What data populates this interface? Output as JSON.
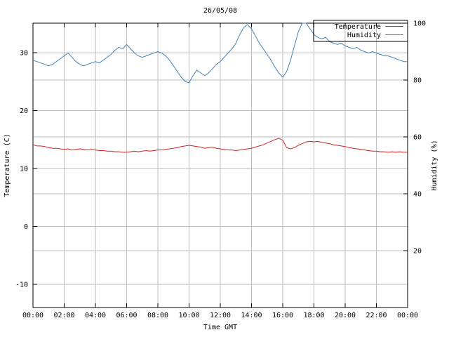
{
  "chart_data": {
    "type": "line",
    "title": "26/05/08",
    "xlabel": "Time GMT",
    "ylabel_left": "Temperature (C)",
    "ylabel_right": "Humidity (%)",
    "x_range": [
      0,
      24
    ],
    "ylim_left": [
      -14,
      35.1
    ],
    "ylim_right": [
      0,
      100
    ],
    "x_tick_hours": [
      0,
      2,
      4,
      6,
      8,
      10,
      12,
      14,
      16,
      18,
      20,
      22,
      24
    ],
    "x_tick_labels": [
      "00:00",
      "02:00",
      "04:00",
      "06:00",
      "08:00",
      "10:00",
      "12:00",
      "14:00",
      "16:00",
      "18:00",
      "20:00",
      "22:00",
      "00:00"
    ],
    "y_ticks_left": [
      -10,
      0,
      10,
      20,
      30
    ],
    "y_ticks_right": [
      20,
      40,
      60,
      80,
      100
    ],
    "grid": true,
    "colors": {
      "temperature": "#cc2222",
      "humidity": "#4682b4",
      "grid": "#bebebe",
      "border": "#000000"
    },
    "legend": {
      "position": "top-right",
      "entries": [
        {
          "label": "Temperature",
          "color": "#cc2222"
        },
        {
          "label": "Humidity",
          "color": "#4682b4"
        }
      ]
    },
    "sample_interval_minutes": 15,
    "series": [
      {
        "name": "Temperature",
        "axis": "left",
        "color": "#cc2222",
        "values": [
          14.1,
          13.9,
          13.9,
          13.8,
          13.6,
          13.5,
          13.5,
          13.4,
          13.3,
          13.4,
          13.2,
          13.3,
          13.4,
          13.3,
          13.2,
          13.3,
          13.2,
          13.1,
          13.1,
          13.0,
          13.0,
          12.9,
          12.9,
          12.8,
          12.8,
          12.9,
          13.0,
          12.9,
          13.0,
          13.1,
          13.0,
          13.1,
          13.2,
          13.2,
          13.3,
          13.4,
          13.5,
          13.6,
          13.8,
          13.9,
          14.0,
          13.9,
          13.8,
          13.7,
          13.5,
          13.6,
          13.7,
          13.5,
          13.4,
          13.3,
          13.2,
          13.2,
          13.1,
          13.2,
          13.3,
          13.4,
          13.5,
          13.7,
          13.9,
          14.1,
          14.4,
          14.7,
          15.0,
          15.2,
          14.9,
          13.6,
          13.4,
          13.6,
          14.0,
          14.3,
          14.6,
          14.7,
          14.6,
          14.7,
          14.5,
          14.4,
          14.3,
          14.1,
          14.0,
          13.9,
          13.8,
          13.6,
          13.5,
          13.4,
          13.3,
          13.2,
          13.1,
          13.0,
          13.0,
          12.9,
          12.9,
          12.8,
          12.9,
          12.8,
          12.9,
          12.8,
          12.8
        ]
      },
      {
        "name": "Humidity",
        "axis": "right",
        "color": "#4682b4",
        "values": [
          87,
          86.5,
          86,
          85.5,
          85,
          85.5,
          86.5,
          87.5,
          88.5,
          89.5,
          88,
          86.5,
          85.5,
          85,
          85.5,
          86,
          86.5,
          86,
          87,
          88,
          89,
          90.5,
          91.5,
          91,
          92.5,
          91,
          89.5,
          88.5,
          88,
          88.5,
          89,
          89.5,
          90,
          89.5,
          88.5,
          87,
          85,
          83,
          81,
          79.5,
          79,
          81.5,
          83.5,
          82.5,
          81.5,
          82.5,
          84,
          85.5,
          86.5,
          88,
          89.5,
          91,
          93,
          96,
          98.5,
          99.5,
          98,
          95.5,
          93,
          91,
          89,
          87,
          84.5,
          82.5,
          81,
          83,
          87,
          92,
          97,
          100,
          100,
          98,
          96,
          95,
          94.5,
          95,
          93.5,
          93,
          92.5,
          93,
          92,
          91.5,
          91,
          91.5,
          90.5,
          90,
          89.5,
          90,
          89.5,
          89,
          88.5,
          88.5,
          88,
          87.5,
          87,
          86.5,
          86.5
        ]
      }
    ]
  }
}
